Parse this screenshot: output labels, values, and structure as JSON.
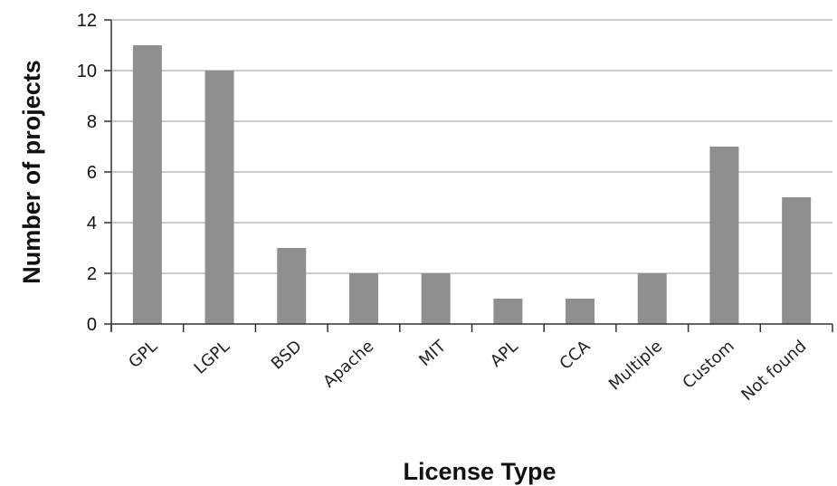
{
  "chart_data": {
    "type": "bar",
    "xlabel": "License Type",
    "ylabel": "Number of projects",
    "categories": [
      "GPL",
      "LGPL",
      "BSD",
      "Apache",
      "MIT",
      "APL",
      "CCA",
      "Multiple",
      "Custom",
      "Not found"
    ],
    "values": [
      11,
      10,
      3,
      2,
      2,
      1,
      1,
      2,
      7,
      5
    ],
    "ylim": [
      0,
      12
    ],
    "yticks": [
      "0",
      "2",
      "4",
      "6",
      "8",
      "10",
      "12"
    ],
    "grid": true,
    "bar_color": "#8f8f8f",
    "grid_color": "#9a9a9a",
    "axis_color": "#333333"
  }
}
